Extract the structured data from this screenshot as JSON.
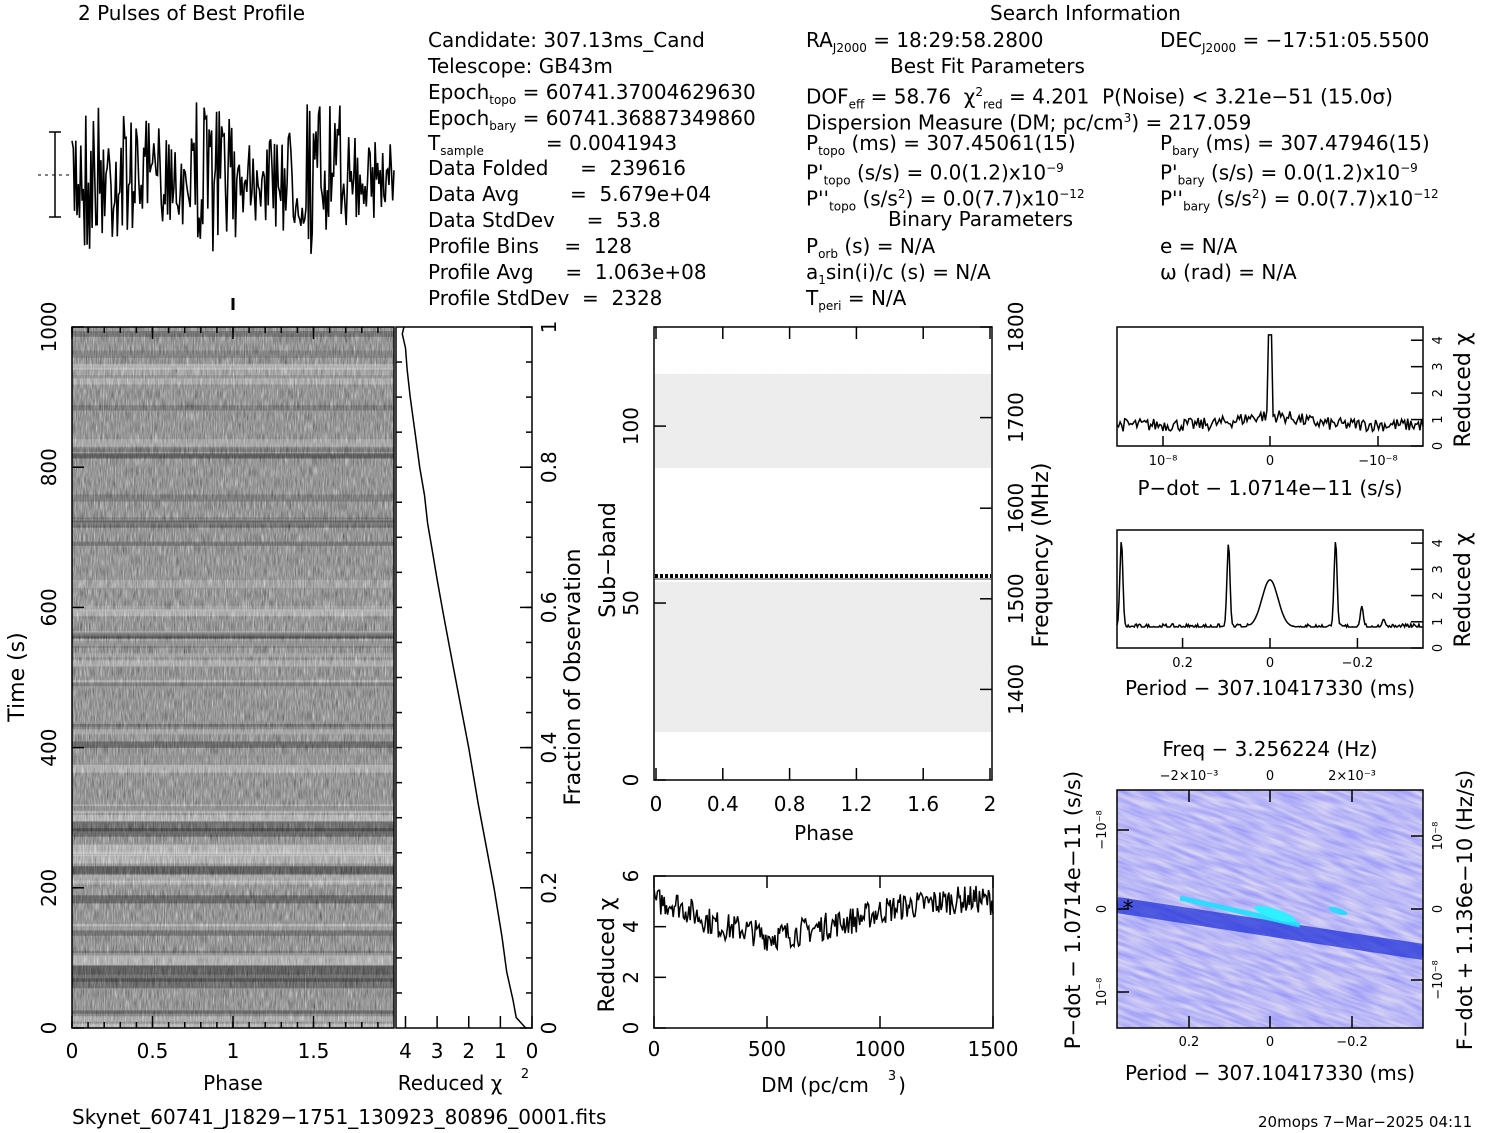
{
  "header": {
    "profile_title": "2 Pulses of Best Profile",
    "search_title": "Search Information",
    "best_fit_title": "Best Fit Parameters",
    "binary_title": "Binary Parameters"
  },
  "candidate_info": {
    "candidate": "Candidate:  307.13ms_Cand",
    "telescope": "Telescope:  GB43m",
    "epoch_topo": "= 60741.37004629630",
    "epoch_bary": "= 60741.36887349860",
    "t_sample": "=  0.0041943",
    "data_folded": "Data Folded     =  239616",
    "data_avg": "Data Avg        =  5.679e+04",
    "data_stddev": "Data StdDev     =  53.8",
    "profile_bins": "Profile Bins    =  128",
    "profile_avg": "Profile Avg     =  1.063e+08",
    "profile_stddev": "Profile StdDev  =  2328"
  },
  "search_info": {
    "ra": "= 18:29:58.2800",
    "dec": "= −17:51:05.5500",
    "dof": "= 58.76",
    "chi2": "= 4.201",
    "pnoise": "P(Noise) < 3.21e−51  (15.0σ)",
    "dm": "Dispersion Measure (DM; pc/cm",
    "dm_value": ") = 217.059",
    "p_topo": "(ms) =  307.45061(15)",
    "p_bary": "(ms) =  307.47946(15)",
    "pd_topo": "(s/s) = 0.0(1.2)x10",
    "pd_bary": "(s/s) = 0.0(1.2)x10",
    "pd_exp": "−9",
    "pdd_topo": "(s/s",
    "pdd_bary": "(s/s",
    "pdd_val": ") = 0.0(7.7)x10",
    "pdd_exp": "−12",
    "porb": "(s) = N/A",
    "a1sini": "sin(i)/c (s) = N/A",
    "tperi": "= N/A",
    "ecc": "e = N/A",
    "omega": "ω (rad) = N/A"
  },
  "labels": {
    "phase": "Phase",
    "reduced_chi2": "Reduced χ",
    "time_s": "Time (s)",
    "fraction_obs": "Fraction of Observation",
    "sub_band": "Sub−band",
    "frequency": "Frequency (MHz)",
    "dm_axis": "DM (pc/cm",
    "pdot_axis": "P−dot − 1.0714e−11 (s/s)",
    "period_axis": "Period − 307.10417330 (ms)",
    "freq_axis": "Freq − 3.256224 (Hz)",
    "fdot_axis": "F−dot + 1.136e−10 (Hz/s)",
    "pdot_left_axis": "P−dot − 1.0714e−11 (s/s)"
  },
  "footer": {
    "filename": "Skynet_60741_J1829−1751_130923_80896_0001.fits",
    "stamp": "20mops  7−Mar−2025 04:11"
  },
  "colors": {
    "ink": "#000000",
    "pdd_low": "#c8c4f0",
    "pdd_high": "#0000ff",
    "pdd_peak": "#20e0ff"
  },
  "chart_data": [
    {
      "name": "time-phase",
      "type": "heatmap",
      "xlabel": "Phase",
      "ylabel": "Time (s)",
      "xlim": [
        0,
        2
      ],
      "ylim": [
        0,
        1000
      ],
      "xticks": [
        "0",
        "0.5",
        "1",
        "1.5"
      ],
      "yticks": [
        "0",
        "200",
        "400",
        "600",
        "800",
        "1000"
      ]
    },
    {
      "name": "time-chi2",
      "type": "line",
      "xlabel": "Reduced χ²",
      "ylabel": "Fraction of Observation",
      "xlim": [
        4,
        0
      ],
      "ylim": [
        0,
        1
      ],
      "xticks": [
        "4",
        "3",
        "2",
        "1",
        "0"
      ],
      "yticks": [
        "0",
        "0.2",
        "0.4",
        "0.6",
        "0.8",
        "1"
      ],
      "x": [
        0.2,
        0.5,
        0.6,
        0.8,
        0.95,
        1.2,
        1.45,
        1.7,
        2.0,
        2.3,
        2.55,
        2.8,
        3.0,
        3.15,
        3.3,
        3.4,
        3.55,
        3.7,
        3.85,
        3.95,
        4.0,
        4.1,
        4.05
      ],
      "y": [
        0.0,
        0.015,
        0.04,
        0.08,
        0.13,
        0.2,
        0.26,
        0.32,
        0.4,
        0.47,
        0.53,
        0.59,
        0.64,
        0.68,
        0.72,
        0.76,
        0.8,
        0.85,
        0.9,
        0.94,
        0.97,
        0.99,
        1.0
      ]
    },
    {
      "name": "subband-phase",
      "type": "heatmap",
      "xlabel": "Phase",
      "ylabel": "Sub−band",
      "y2label": "Frequency (MHz)",
      "xlim": [
        0,
        2
      ],
      "ylim": [
        0,
        128
      ],
      "y2lim": [
        1300,
        1800
      ],
      "xticks": [
        "0",
        "0.4",
        "0.8",
        "1.2",
        "1.6",
        "2"
      ],
      "yticks": [
        "0",
        "50",
        "100"
      ],
      "y2ticks": [
        "1400",
        "1500",
        "1600",
        "1700",
        "1800"
      ],
      "bright_subband": 58
    },
    {
      "name": "dm-chi2",
      "type": "line",
      "xlabel": "DM (pc/cm³)",
      "ylabel": "Reduced χ²",
      "xlim": [
        0,
        1500
      ],
      "ylim": [
        0,
        6
      ],
      "xticks": [
        "0",
        "500",
        "1000",
        "1500"
      ],
      "yticks": [
        "0",
        "2",
        "4",
        "6"
      ],
      "x": [
        0,
        100,
        200,
        300,
        400,
        500,
        600,
        700,
        800,
        900,
        1000,
        1100,
        1200,
        1300,
        1400,
        1500
      ],
      "y": [
        5.0,
        4.9,
        4.4,
        4.0,
        3.9,
        3.6,
        3.7,
        3.9,
        4.1,
        4.3,
        4.6,
        4.8,
        4.9,
        5.0,
        5.1,
        5.0
      ]
    },
    {
      "name": "pdot-chi2",
      "type": "line",
      "xlabel": "P−dot − 1.0714e−11 (s/s)",
      "ylabel": "Reduced χ²",
      "xticks": [
        "10⁻⁸",
        "0",
        "−10⁻⁸"
      ],
      "yticks": [
        "0",
        "1",
        "2",
        "3",
        "4"
      ],
      "ylim": [
        0,
        4.5
      ],
      "peak_x": 0,
      "peak_y": 4.2,
      "baseline": 0.8
    },
    {
      "name": "period-chi2",
      "type": "line",
      "xlabel": "Period − 307.10417330 (ms)",
      "ylabel": "Reduced χ²",
      "xlim": [
        0.35,
        -0.35
      ],
      "ylim": [
        0,
        4.5
      ],
      "xticks": [
        "0.2",
        "0",
        "−0.2"
      ],
      "yticks": [
        "0",
        "1",
        "2",
        "3",
        "4"
      ],
      "peaks": [
        {
          "x": 0.34,
          "y": 4.1
        },
        {
          "x": 0.095,
          "y": 4.0
        },
        {
          "x": 0.0,
          "y": 2.6
        },
        {
          "x": -0.15,
          "y": 4.1
        },
        {
          "x": -0.21,
          "y": 1.6
        },
        {
          "x": -0.26,
          "y": 1.1
        }
      ],
      "baseline": 0.8
    },
    {
      "name": "period-pdot",
      "type": "heatmap",
      "xlabel": "Period − 307.10417330 (ms)",
      "ylabel": "P−dot − 1.0714e−11 (s/s)",
      "x2label": "Freq − 3.256224 (Hz)",
      "y2label": "F−dot + 1.136e−10 (Hz/s)",
      "xticks": [
        "0.2",
        "0",
        "−0.2"
      ],
      "x2ticks": [
        "−2×10⁻³",
        "0",
        "2×10⁻³"
      ],
      "yticks": [
        "10⁻⁸",
        "0",
        "−10⁻⁸"
      ],
      "y2ticks": [
        "−10⁻⁸",
        "0",
        "10⁻⁸"
      ]
    }
  ]
}
